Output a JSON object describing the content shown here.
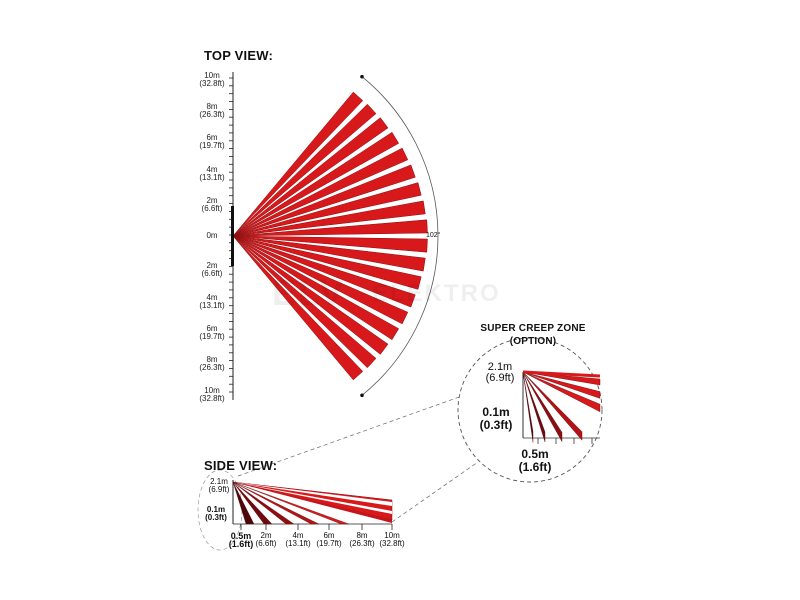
{
  "top_view": {
    "title": "TOP VIEW:",
    "scale_labels": [
      {
        "m": "10m",
        "ft": "(32.8ft)"
      },
      {
        "m": "8m",
        "ft": "(26.3ft)"
      },
      {
        "m": "6m",
        "ft": "(19.7ft)"
      },
      {
        "m": "4m",
        "ft": "(13.1ft)"
      },
      {
        "m": "2m",
        "ft": "(6.6ft)"
      },
      {
        "m": "0m",
        "ft": ""
      },
      {
        "m": "2m",
        "ft": "(6.6ft)"
      },
      {
        "m": "4m",
        "ft": "(13.1ft)"
      },
      {
        "m": "6m",
        "ft": "(19.7ft)"
      },
      {
        "m": "8m",
        "ft": "(26.3ft)"
      },
      {
        "m": "10m",
        "ft": "(32.8ft)"
      }
    ],
    "angle_label": "102°",
    "beam_count": 18,
    "beam_color": "#d7191c",
    "beam_edge_color": "#8b0d0f"
  },
  "watermark": {
    "line1": "ELV",
    "line2": "ELEKTRO"
  },
  "super_creep": {
    "title_line1": "SUPER CREEP ZONE",
    "title_line2": "(OPTION)",
    "height_m": "2.1m",
    "height_ft": "(6.9ft)",
    "low_m": "0.1m",
    "low_ft": "(0.3ft)",
    "dist_m": "0.5m",
    "dist_ft": "(1.6ft)"
  },
  "side_view": {
    "title": "SIDE VIEW:",
    "height_m": "2.1m",
    "height_ft": "(6.9ft)",
    "low_m": "0.1m",
    "low_ft": "(0.3ft)",
    "ticks": [
      {
        "m": "0.5m",
        "ft": "(1.6ft)"
      },
      {
        "m": "2m",
        "ft": "(6.6ft)"
      },
      {
        "m": "4m",
        "ft": "(13.1ft)"
      },
      {
        "m": "6m",
        "ft": "(19.7ft)"
      },
      {
        "m": "8m",
        "ft": "(26.3ft)"
      },
      {
        "m": "10m",
        "ft": "(32.8ft)"
      }
    ]
  }
}
